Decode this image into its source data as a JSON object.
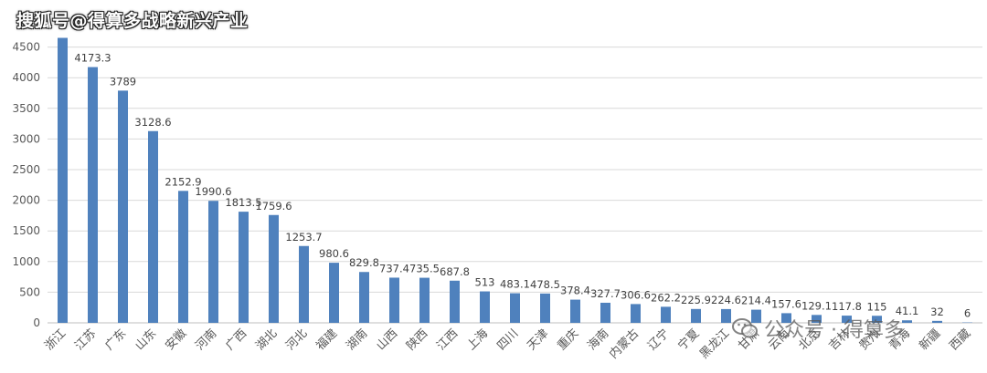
{
  "watermarks": {
    "top": "搜狐号@得算多战略新兴产业",
    "bottom": "公众号 · 得算多"
  },
  "colors": {
    "bar": "#4f81bd",
    "grid": "#d9d9d9",
    "text": "#595959"
  },
  "chart_data": {
    "type": "bar",
    "title": "",
    "xlabel": "",
    "ylabel": "",
    "ylim": [
      0,
      4700
    ],
    "yticks": [
      0,
      500,
      1000,
      1500,
      2000,
      2500,
      3000,
      3500,
      4000,
      4500
    ],
    "grid": true,
    "categories": [
      "浙江",
      "江苏",
      "广东",
      "山东",
      "安徽",
      "河南",
      "广西",
      "湖北",
      "河北",
      "福建",
      "湖南",
      "山西",
      "陕西",
      "江西",
      "上海",
      "四川",
      "天津",
      "重庆",
      "海南",
      "内蒙古",
      "辽宁",
      "宁夏",
      "黑龙江",
      "甘肃",
      "云南",
      "北京",
      "吉林",
      "贵州",
      "青海",
      "新疆",
      "西藏"
    ],
    "values": [
      4650,
      4173.3,
      3789,
      3128.6,
      2152.9,
      1990.6,
      1813.5,
      1759.6,
      1253.7,
      980.6,
      829.8,
      737.4,
      735.5,
      687.8,
      513,
      483.1,
      478.5,
      378.4,
      327.7,
      306.6,
      262.2,
      225.9,
      224.6,
      214.4,
      157.6,
      129.1,
      117.8,
      115,
      41.1,
      32,
      6
    ],
    "data_labels": [
      null,
      "4173.3",
      "3789",
      "3128.6",
      "2152.9",
      "1990.6",
      "1813.5",
      "1759.6",
      "1253.7",
      "980.6",
      "829.8",
      "737.4",
      "735.5",
      "687.8",
      "513",
      "483.1",
      "478.5",
      "378.4",
      "327.7",
      "306.6",
      "262.2",
      "225.9",
      "224.6",
      "214.4",
      "157.6",
      "129.1",
      "117.8",
      "115",
      "41.1",
      "32",
      "6"
    ]
  }
}
